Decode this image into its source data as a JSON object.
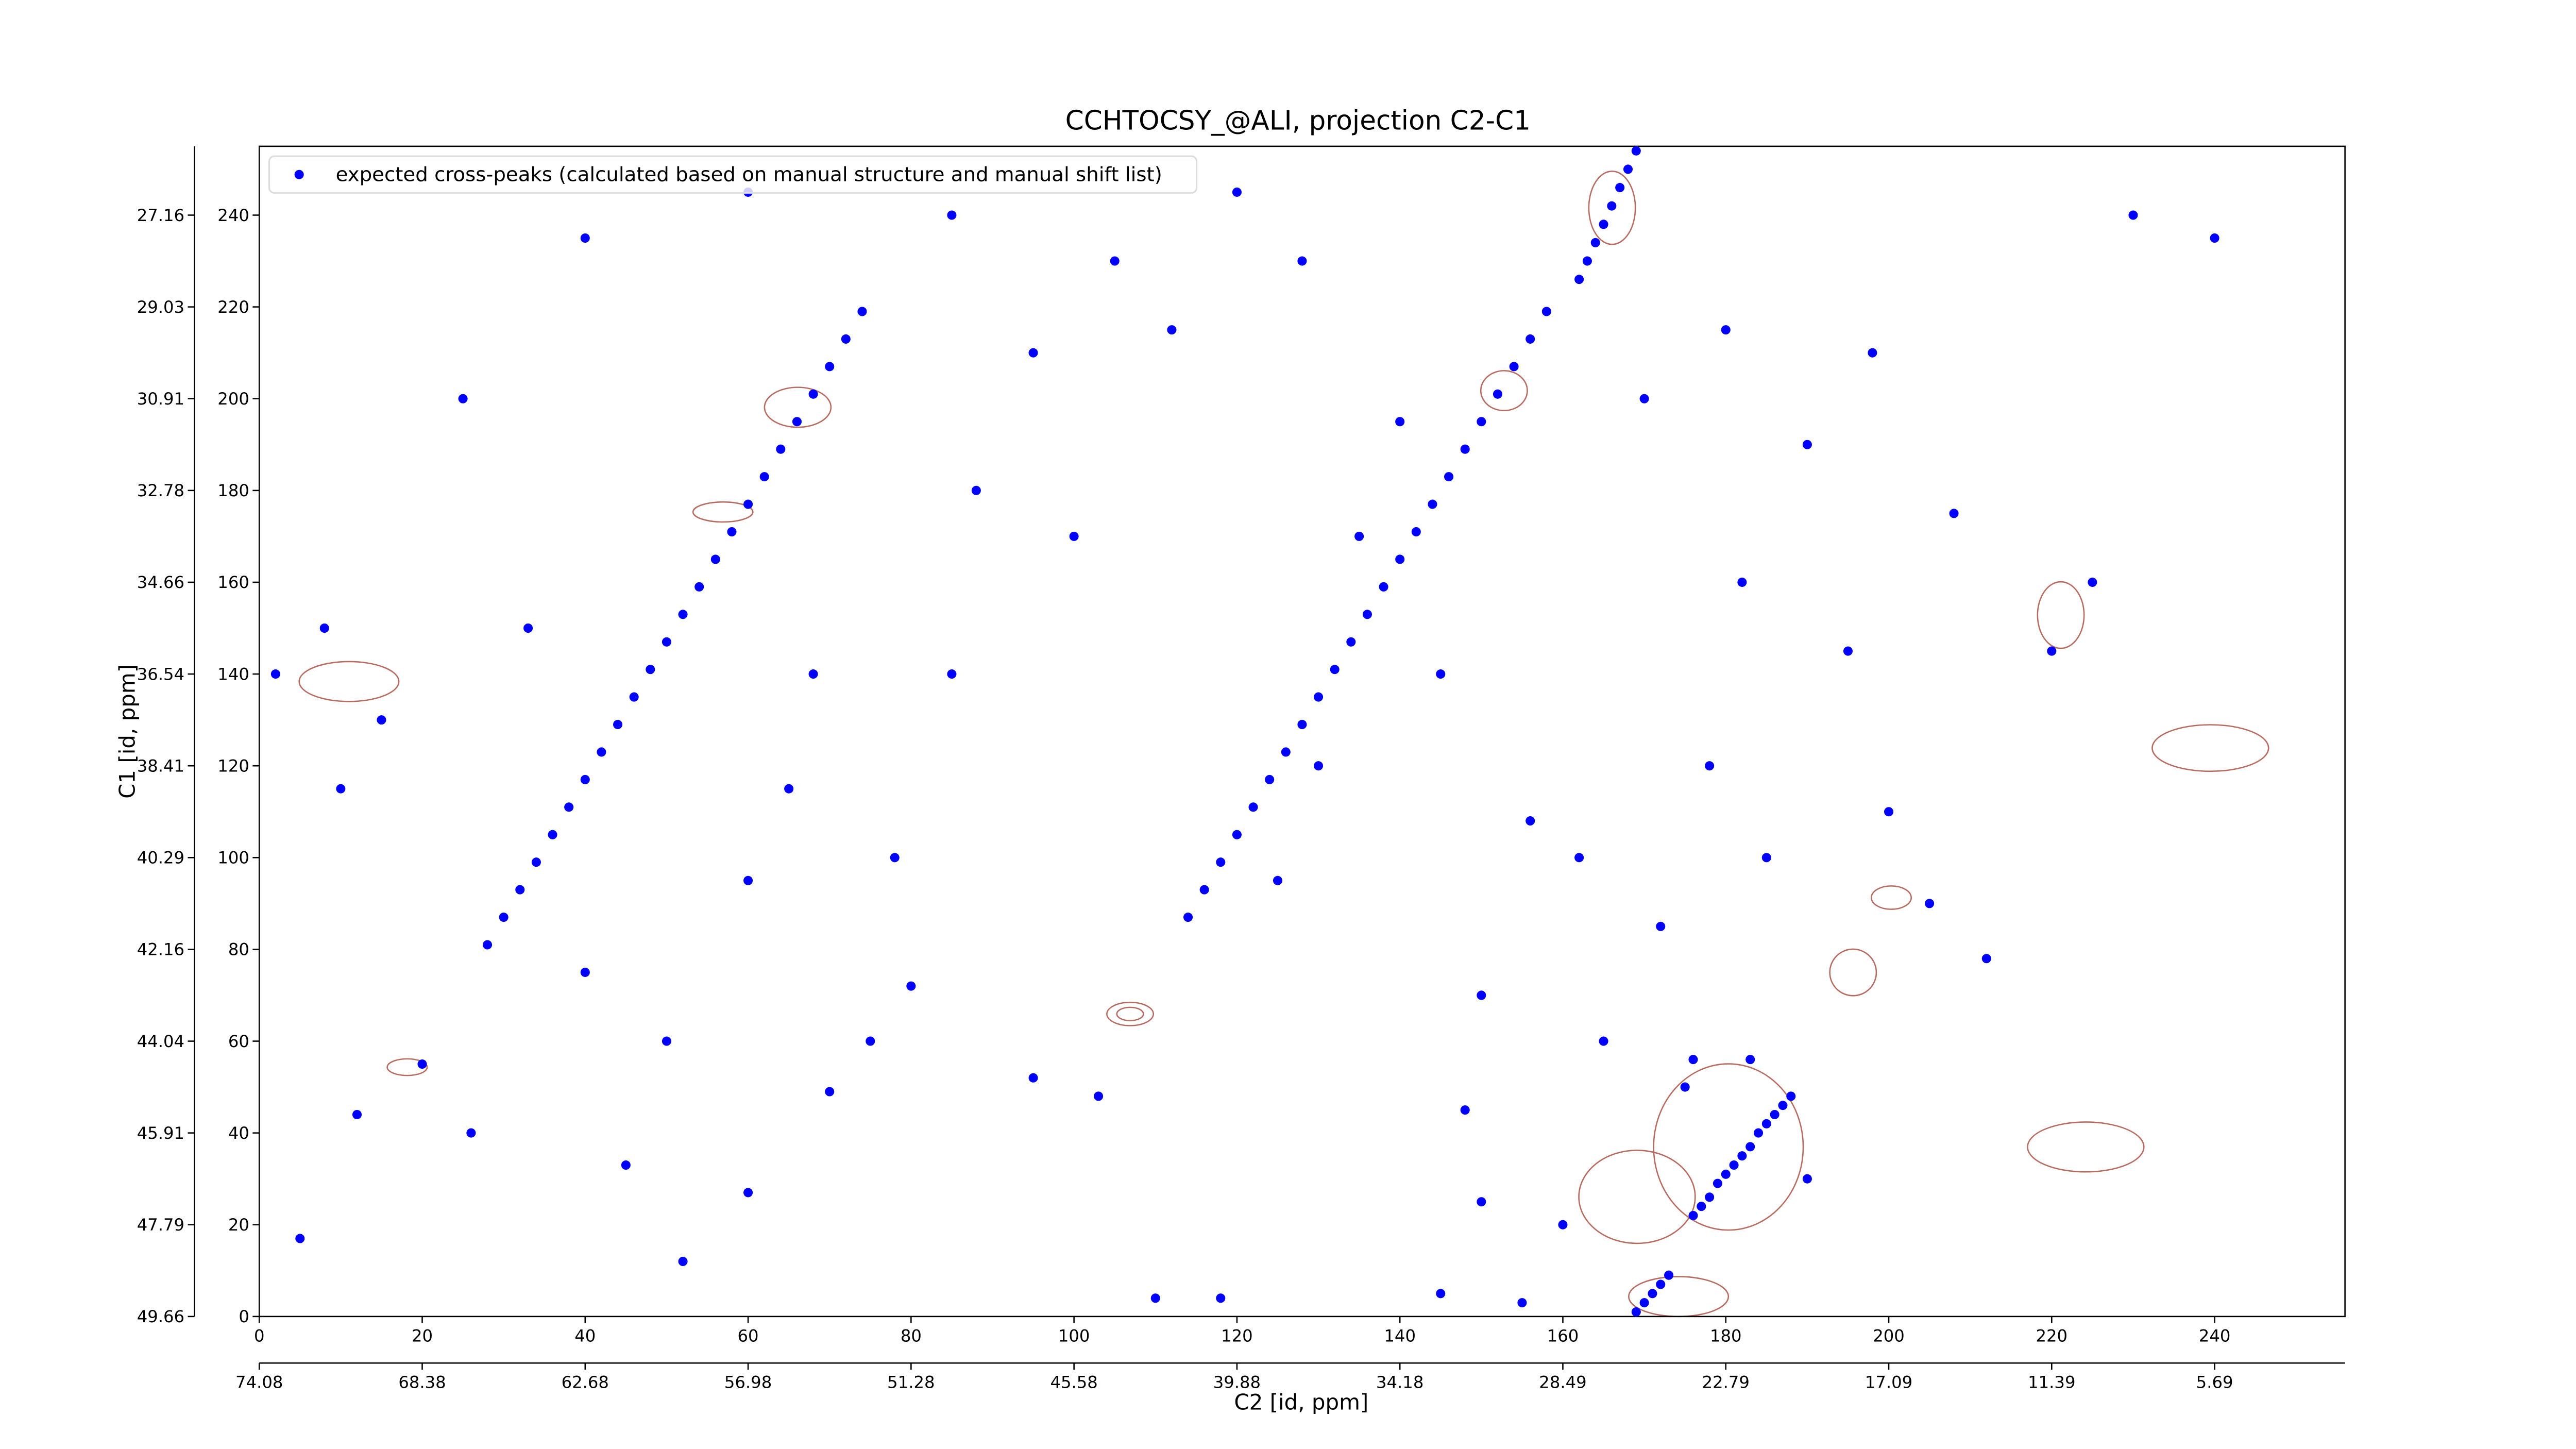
{
  "chart_data": {
    "type": "scatter",
    "title": "CCHTOCSY_@ALI, projection C2-C1",
    "x_label": "C2 [id, ppm]",
    "y_label": "C1 [id, ppm]",
    "legend": "upper left",
    "xlim": [
      0,
      256
    ],
    "ylim": [
      0,
      255
    ],
    "xticks": [
      0,
      20,
      40,
      60,
      80,
      100,
      120,
      140,
      160,
      180,
      200,
      220,
      240
    ],
    "yticks": [
      0,
      20,
      40,
      60,
      80,
      100,
      120,
      140,
      160,
      180,
      200,
      220,
      240
    ],
    "x2lim": [
      0,
      256
    ],
    "x2ticks": [
      {
        "value": 0,
        "label": "74.08"
      },
      {
        "value": 20,
        "label": "68.38"
      },
      {
        "value": 40,
        "label": "62.68"
      },
      {
        "value": 60,
        "label": "56.98"
      },
      {
        "value": 80,
        "label": "51.28"
      },
      {
        "value": 100,
        "label": "45.58"
      },
      {
        "value": 120,
        "label": "39.88"
      },
      {
        "value": 140,
        "label": "34.18"
      },
      {
        "value": 160,
        "label": "28.49"
      },
      {
        "value": 180,
        "label": "22.79"
      },
      {
        "value": 200,
        "label": "17.09"
      },
      {
        "value": 220,
        "label": "11.39"
      },
      {
        "value": 240,
        "label": "5.69"
      }
    ],
    "y2lim": [
      0,
      255
    ],
    "y2ticks": [
      {
        "value": 0,
        "label": "49.66"
      },
      {
        "value": 20,
        "label": "47.79"
      },
      {
        "value": 40,
        "label": "45.91"
      },
      {
        "value": 60,
        "label": "44.04"
      },
      {
        "value": 80,
        "label": "42.16"
      },
      {
        "value": 100,
        "label": "40.29"
      },
      {
        "value": 120,
        "label": "38.41"
      },
      {
        "value": 140,
        "label": "36.54"
      },
      {
        "value": 160,
        "label": "34.66"
      },
      {
        "value": 180,
        "label": "32.78"
      },
      {
        "value": 200,
        "label": "30.91"
      },
      {
        "value": 220,
        "label": "29.03"
      },
      {
        "value": 240,
        "label": "27.16"
      }
    ],
    "series": [
      {
        "name": "expected cross-peaks (calculated based on manual structure and manual shift list)",
        "color": "#0000ff",
        "x": [
          28,
          30,
          32,
          34,
          36,
          38,
          40,
          42,
          44,
          46,
          48,
          50,
          52,
          54,
          56,
          58,
          60,
          62,
          64,
          66,
          68,
          70,
          72,
          74,
          114,
          116,
          118,
          120,
          122,
          124,
          126,
          128,
          130,
          132,
          134,
          136,
          138,
          140,
          142,
          144,
          146,
          148,
          150,
          152,
          154,
          156,
          158,
          176,
          177,
          178,
          179,
          180,
          181,
          182,
          183,
          184,
          185,
          186,
          187,
          188,
          162,
          163,
          164,
          165,
          166,
          167,
          168,
          169,
          169,
          170,
          171,
          172,
          173,
          5,
          12,
          20,
          26,
          45,
          52,
          60,
          70,
          75,
          80,
          95,
          103,
          110,
          118,
          125,
          130,
          100,
          95,
          85,
          60,
          40,
          25,
          15,
          8,
          140,
          150,
          148,
          150,
          162,
          165,
          172,
          178,
          182,
          190,
          195,
          200,
          205,
          212,
          220,
          225,
          230,
          240,
          198,
          180,
          170,
          156,
          145,
          135,
          128,
          120,
          105,
          112,
          88,
          85,
          78,
          50,
          40,
          33,
          10,
          2,
          65,
          68,
          60,
          208,
          185,
          160,
          145,
          155,
          175,
          176,
          183,
          190
        ],
        "values": [
          81,
          87,
          93,
          99,
          105,
          111,
          117,
          123,
          129,
          135,
          141,
          147,
          153,
          159,
          165,
          171,
          177,
          183,
          189,
          195,
          201,
          207,
          213,
          219,
          87,
          93,
          99,
          105,
          111,
          117,
          123,
          129,
          135,
          141,
          147,
          153,
          159,
          165,
          171,
          177,
          183,
          189,
          195,
          201,
          207,
          213,
          219,
          22,
          24,
          26,
          29,
          31,
          33,
          35,
          37,
          40,
          42,
          44,
          46,
          48,
          226,
          230,
          234,
          238,
          242,
          246,
          250,
          254,
          1,
          3,
          5,
          7,
          9,
          17,
          44,
          55,
          40,
          33,
          12,
          27,
          49,
          60,
          72,
          52,
          48,
          4,
          4,
          95,
          120,
          170,
          210,
          240,
          245,
          235,
          200,
          130,
          150,
          195,
          70,
          45,
          25,
          100,
          60,
          85,
          120,
          160,
          190,
          145,
          110,
          90,
          78,
          145,
          160,
          240,
          235,
          210,
          215,
          200,
          108,
          140,
          170,
          230,
          245,
          230,
          215,
          180,
          140,
          100,
          60,
          75,
          150,
          115,
          140,
          115,
          140,
          95,
          175,
          100,
          20,
          5,
          3,
          50,
          56,
          56,
          30
        ]
      }
    ]
  }
}
